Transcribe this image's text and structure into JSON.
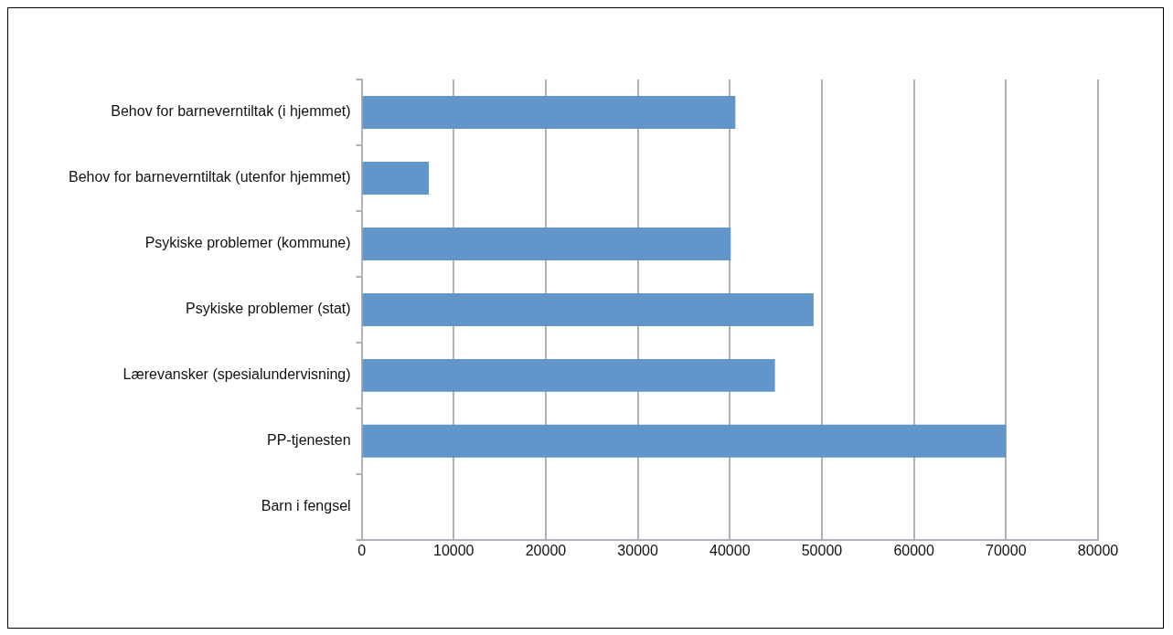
{
  "chart_data": {
    "type": "bar",
    "orientation": "horizontal",
    "categories": [
      "Behov for barneverntiltak (i hjemmet)",
      "Behov for barneverntiltak (utenfor hjemmet)",
      "Psykiske problemer (kommune)",
      "Psykiske problemer (stat)",
      "Lærevansker (spesialundervisning)",
      "PP-tjenesten",
      "Barn i fengsel"
    ],
    "values": [
      40600,
      7300,
      40100,
      49100,
      44900,
      70000,
      100
    ],
    "color": "#6096c9",
    "xlim": [
      0,
      80000
    ],
    "xticks": [
      0,
      10000,
      20000,
      30000,
      40000,
      50000,
      60000,
      70000,
      80000
    ],
    "grid": "x",
    "legend": false
  }
}
